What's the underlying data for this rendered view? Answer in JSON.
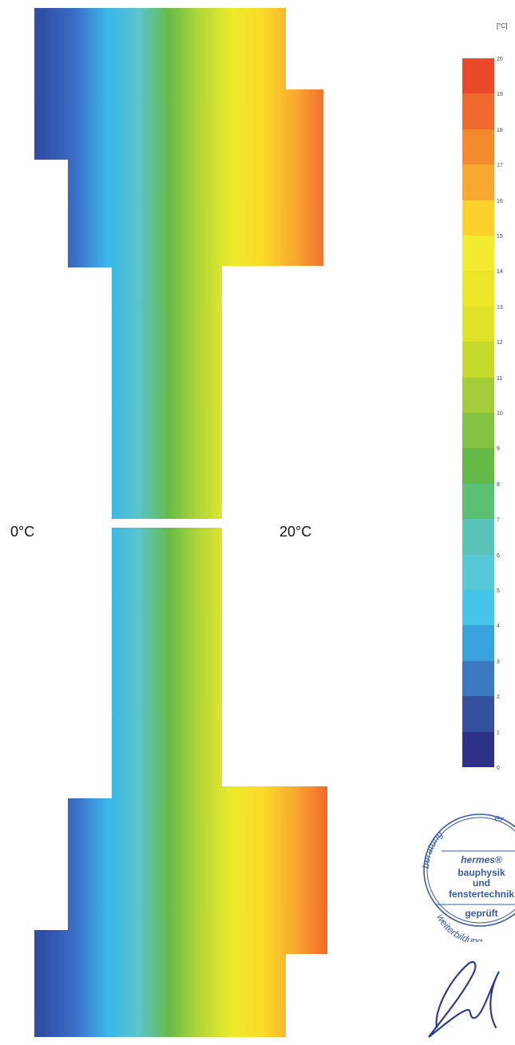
{
  "labels": {
    "cold_side": "0°C",
    "warm_side": "20°C"
  },
  "legend": {
    "unit": "[°C]",
    "ticks": [
      "20",
      "19",
      "18",
      "17",
      "16",
      "15",
      "14",
      "13",
      "12",
      "11",
      "10",
      "9",
      "8",
      "7",
      "6",
      "5",
      "4",
      "3",
      "2",
      "1",
      "0"
    ],
    "colors": [
      "#e84a2a",
      "#ef6a2c",
      "#f4892d",
      "#f8a82e",
      "#fdd02a",
      "#f3eb30",
      "#ebe628",
      "#dfe227",
      "#c6da2c",
      "#a4cc3a",
      "#84c242",
      "#65b947",
      "#5bbf74",
      "#5ac4ba",
      "#57c8d7",
      "#45c5ec",
      "#3aa2dc",
      "#3b78c0",
      "#35509f",
      "#2d3288"
    ]
  },
  "thermal_gradient": [
    "#2f4fa5",
    "#3b6fc7",
    "#39b6ea",
    "#5ac4cc",
    "#68bb46",
    "#b9d936",
    "#eeea2a",
    "#fbd829",
    "#f8a82e",
    "#f06a2c"
  ],
  "stamp": {
    "arc_top_left": "beratung",
    "arc_top_right": "er",
    "brand": "hermes®",
    "line1": "bauphysik",
    "line2": "und",
    "line3": "fenstertechnik",
    "status": "geprüft",
    "arc_bottom": "weiterbildung",
    "color": "#3a58a8"
  }
}
